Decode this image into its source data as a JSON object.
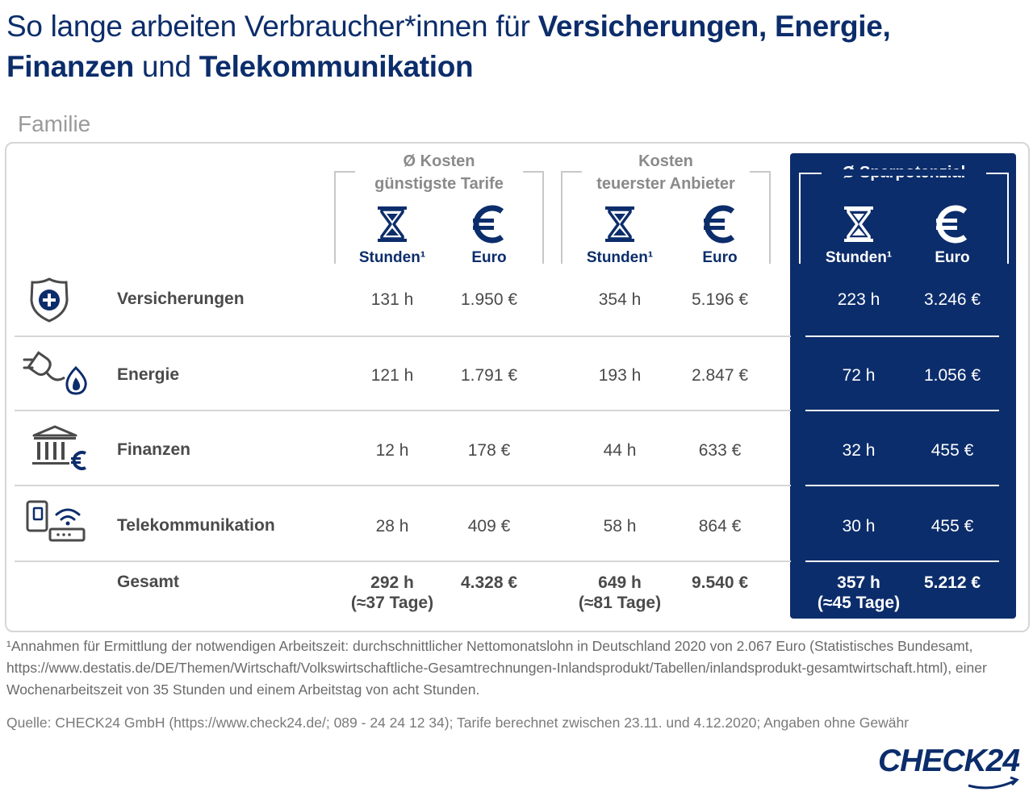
{
  "title": {
    "part1": "So lange arbeiten Verbraucher*innen für ",
    "part2": "Versicherungen, Energie,",
    "part3": "Finanzen",
    "part4": " und ",
    "part5": "Telekommunikation"
  },
  "section_label": "Familie",
  "groups": {
    "cheapest": {
      "line1": "Ø Kosten",
      "line2": "günstigste Tarife"
    },
    "expensive": {
      "line1": "Kosten",
      "line2": "teuerster Anbieter"
    },
    "savings": {
      "line1": "Ø Sparpotenzial"
    }
  },
  "column_labels": {
    "hours": "Stunden¹",
    "euro": "Euro"
  },
  "icons": {
    "hours": "hourglass-icon",
    "euro": "euro-icon",
    "categories": [
      "shield-plus-icon",
      "plug-flame-icon",
      "bank-euro-icon",
      "phone-router-icon"
    ]
  },
  "colors": {
    "accent": "#0c2d6b",
    "text": "#4a4a4a",
    "muted": "#8a8a8a",
    "divider": "#d6d6d6"
  },
  "chart_data": {
    "type": "table",
    "columns": [
      "Ø Kosten günstigste Tarife – Stunden¹",
      "Ø Kosten günstigste Tarife – Euro",
      "Kosten teuerster Anbieter – Stunden¹",
      "Kosten teuerster Anbieter – Euro",
      "Ø Sparpotenzial – Stunden¹",
      "Ø Sparpotenzial – Euro"
    ],
    "rows": [
      {
        "category": "Versicherungen",
        "values": [
          "131 h",
          "1.950 €",
          "354 h",
          "5.196 €",
          "223 h",
          "3.246 €"
        ]
      },
      {
        "category": "Energie",
        "values": [
          "121 h",
          "1.791 €",
          "193 h",
          "2.847 €",
          "72 h",
          "1.056 €"
        ]
      },
      {
        "category": "Finanzen",
        "values": [
          "12 h",
          "178 €",
          "44 h",
          "633 €",
          "32 h",
          "455 €"
        ]
      },
      {
        "category": "Telekommunikation",
        "values": [
          "28 h",
          "409 €",
          "58 h",
          "864 €",
          "30 h",
          "455 €"
        ]
      }
    ],
    "total": {
      "label": "Gesamt",
      "values": [
        "292 h",
        "4.328 €",
        "649 h",
        "9.540 €",
        "357 h",
        "5.212 €"
      ],
      "days": [
        "(≈37 Tage)",
        "(≈81 Tage)",
        "(≈45 Tage)"
      ]
    }
  },
  "footnote": "¹Annahmen für Ermittlung der notwendigen Arbeitszeit: durchschnittlicher Nettomonatslohn in Deutschland 2020 von 2.067 Euro (Statistisches Bundesamt, https://www.destatis.de/DE/Themen/Wirtschaft/Volkswirtschaftliche-Gesamtrechnungen-Inlandsprodukt/Tabellen/inlandsprodukt-gesamtwirtschaft.html), einer Wochenarbeitszeit von 35 Stunden und einem Arbeitstag von acht Stunden.",
  "source": "Quelle: CHECK24 GmbH (https://www.check24.de/; 089 - 24 24 12 34); Tarife berechnet zwischen 23.11. und 4.12.2020; Angaben ohne Gewähr",
  "logo": "CHECK24"
}
